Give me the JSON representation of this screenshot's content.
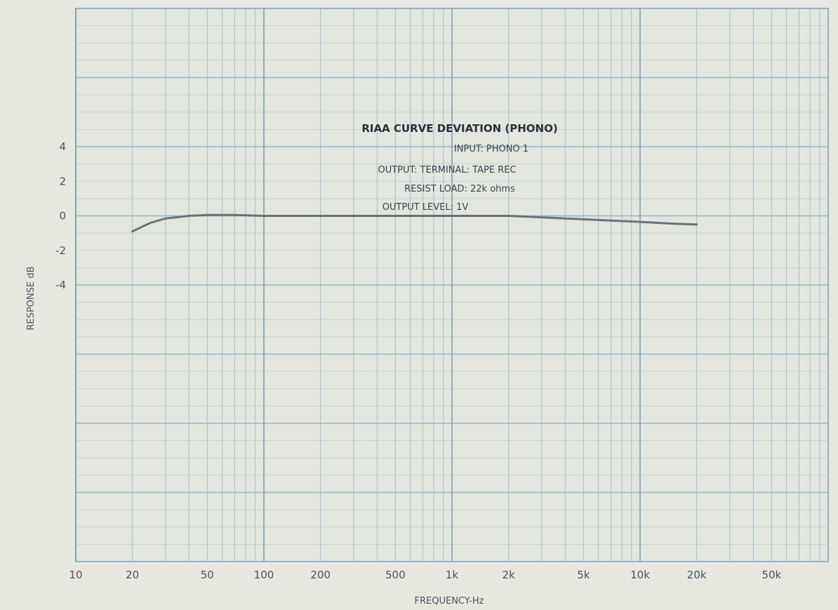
{
  "chart_data": {
    "type": "line",
    "title": "RIAA CURVE DEVIATION (PHONO)",
    "annotations": [
      "INPUT: PHONO 1",
      "OUTPUT: TERMINAL: TAPE REC",
      "RESIST LOAD: 22k ohms",
      "OUTPUT LEVEL: 1V"
    ],
    "xlabel": "FREQUENCY-Hz",
    "ylabel": "RESPONSE dB",
    "x_scale": "log",
    "xlim": [
      10,
      100000
    ],
    "ylim": [
      -20,
      12
    ],
    "x_tick_labels": [
      {
        "value": 10,
        "label": "10"
      },
      {
        "value": 20,
        "label": "20"
      },
      {
        "value": 50,
        "label": "50"
      },
      {
        "value": 100,
        "label": "100"
      },
      {
        "value": 200,
        "label": "200"
      },
      {
        "value": 500,
        "label": "500"
      },
      {
        "value": 1000,
        "label": "1k"
      },
      {
        "value": 2000,
        "label": "2k"
      },
      {
        "value": 5000,
        "label": "5k"
      },
      {
        "value": 10000,
        "label": "10k"
      },
      {
        "value": 20000,
        "label": "20k"
      },
      {
        "value": 50000,
        "label": "50k"
      }
    ],
    "y_tick_labels": [
      {
        "value": 4,
        "label": "4"
      },
      {
        "value": 2,
        "label": "2"
      },
      {
        "value": 0,
        "label": "0"
      },
      {
        "value": -2,
        "label": "-2"
      },
      {
        "value": -4,
        "label": "-4"
      }
    ],
    "grid": true,
    "series": [
      {
        "color": "#6b7078",
        "x": [
          20,
          25,
          30,
          40,
          50,
          70,
          100,
          200,
          500,
          1000,
          2000,
          5000,
          10000,
          15000,
          20000
        ],
        "y": [
          -0.9,
          -0.4,
          -0.15,
          0.0,
          0.05,
          0.05,
          0.0,
          0.0,
          0.0,
          0.0,
          0.0,
          -0.2,
          -0.35,
          -0.45,
          -0.5
        ]
      }
    ]
  }
}
